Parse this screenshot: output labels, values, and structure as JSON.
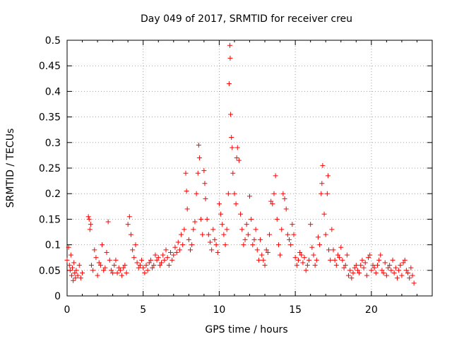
{
  "chart_data": {
    "type": "scatter",
    "title": "Day 049 of 2017, SRMTID for receiver creu",
    "xlabel": "GPS time / hours",
    "ylabel": "SRMTID / TECUs",
    "xlim": [
      0,
      24
    ],
    "ylim": [
      0,
      0.5
    ],
    "grid": true,
    "marker": "+",
    "xticks": [
      0,
      5,
      10,
      15,
      20
    ],
    "xtick_labels": [
      "0",
      "5",
      "10",
      "15",
      "20"
    ],
    "yticks": [
      0,
      0.05,
      0.1,
      0.15,
      0.2,
      0.25,
      0.3,
      0.35,
      0.4,
      0.45,
      0.5
    ],
    "ytick_labels": [
      "0",
      "0.05",
      "0.1",
      "0.15",
      "0.2",
      "0.25",
      "0.3",
      "0.35",
      "0.4",
      "0.45",
      "0.5"
    ],
    "series": [
      {
        "name": "SRMTID",
        "color": "#ff0000",
        "points": [
          [
            0.0,
            0.07
          ],
          [
            0.1,
            0.095
          ],
          [
            0.15,
            0.06
          ],
          [
            0.2,
            0.05
          ],
          [
            0.25,
            0.08
          ],
          [
            0.3,
            0.04
          ],
          [
            0.35,
            0.055
          ],
          [
            0.4,
            0.03
          ],
          [
            0.45,
            0.065
          ],
          [
            0.5,
            0.045
          ],
          [
            0.55,
            0.035
          ],
          [
            0.6,
            0.05
          ],
          [
            0.7,
            0.04
          ],
          [
            0.8,
            0.06
          ],
          [
            0.9,
            0.035
          ],
          [
            1.0,
            0.045
          ],
          [
            1.4,
            0.155
          ],
          [
            1.45,
            0.15
          ],
          [
            1.5,
            0.13
          ],
          [
            1.55,
            0.14
          ],
          [
            1.6,
            0.06
          ],
          [
            1.7,
            0.05
          ],
          [
            1.8,
            0.09
          ],
          [
            1.9,
            0.075
          ],
          [
            2.0,
            0.04
          ],
          [
            2.1,
            0.065
          ],
          [
            2.2,
            0.06
          ],
          [
            2.3,
            0.1
          ],
          [
            2.4,
            0.05
          ],
          [
            2.5,
            0.055
          ],
          [
            2.6,
            0.085
          ],
          [
            2.7,
            0.145
          ],
          [
            2.8,
            0.07
          ],
          [
            2.9,
            0.05
          ],
          [
            3.0,
            0.045
          ],
          [
            3.1,
            0.06
          ],
          [
            3.2,
            0.07
          ],
          [
            3.3,
            0.045
          ],
          [
            3.4,
            0.055
          ],
          [
            3.5,
            0.05
          ],
          [
            3.6,
            0.04
          ],
          [
            3.7,
            0.055
          ],
          [
            3.8,
            0.06
          ],
          [
            3.9,
            0.045
          ],
          [
            4.0,
            0.14
          ],
          [
            4.1,
            0.155
          ],
          [
            4.2,
            0.12
          ],
          [
            4.3,
            0.09
          ],
          [
            4.4,
            0.075
          ],
          [
            4.5,
            0.1
          ],
          [
            4.6,
            0.065
          ],
          [
            4.7,
            0.055
          ],
          [
            4.8,
            0.06
          ],
          [
            4.9,
            0.07
          ],
          [
            5.0,
            0.055
          ],
          [
            5.1,
            0.045
          ],
          [
            5.2,
            0.06
          ],
          [
            5.3,
            0.05
          ],
          [
            5.4,
            0.065
          ],
          [
            5.5,
            0.07
          ],
          [
            5.6,
            0.055
          ],
          [
            5.7,
            0.06
          ],
          [
            5.8,
            0.08
          ],
          [
            5.9,
            0.07
          ],
          [
            6.0,
            0.075
          ],
          [
            6.1,
            0.06
          ],
          [
            6.2,
            0.065
          ],
          [
            6.3,
            0.08
          ],
          [
            6.4,
            0.07
          ],
          [
            6.5,
            0.09
          ],
          [
            6.6,
            0.075
          ],
          [
            6.7,
            0.06
          ],
          [
            6.8,
            0.085
          ],
          [
            6.9,
            0.07
          ],
          [
            7.0,
            0.08
          ],
          [
            7.1,
            0.095
          ],
          [
            7.2,
            0.085
          ],
          [
            7.3,
            0.105
          ],
          [
            7.4,
            0.09
          ],
          [
            7.5,
            0.12
          ],
          [
            7.6,
            0.1
          ],
          [
            7.7,
            0.13
          ],
          [
            7.8,
            0.24
          ],
          [
            7.85,
            0.205
          ],
          [
            7.9,
            0.17
          ],
          [
            8.0,
            0.11
          ],
          [
            8.1,
            0.09
          ],
          [
            8.2,
            0.1
          ],
          [
            8.3,
            0.13
          ],
          [
            8.4,
            0.145
          ],
          [
            8.5,
            0.2
          ],
          [
            8.6,
            0.24
          ],
          [
            8.65,
            0.295
          ],
          [
            8.7,
            0.27
          ],
          [
            8.8,
            0.15
          ],
          [
            8.9,
            0.12
          ],
          [
            9.0,
            0.245
          ],
          [
            9.05,
            0.22
          ],
          [
            9.1,
            0.19
          ],
          [
            9.2,
            0.15
          ],
          [
            9.3,
            0.12
          ],
          [
            9.4,
            0.105
          ],
          [
            9.5,
            0.09
          ],
          [
            9.6,
            0.13
          ],
          [
            9.7,
            0.11
          ],
          [
            9.8,
            0.1
          ],
          [
            9.9,
            0.085
          ],
          [
            10.0,
            0.18
          ],
          [
            10.1,
            0.16
          ],
          [
            10.2,
            0.14
          ],
          [
            10.3,
            0.12
          ],
          [
            10.4,
            0.1
          ],
          [
            10.5,
            0.13
          ],
          [
            10.6,
            0.2
          ],
          [
            10.65,
            0.415
          ],
          [
            10.7,
            0.49
          ],
          [
            10.72,
            0.465
          ],
          [
            10.75,
            0.355
          ],
          [
            10.8,
            0.31
          ],
          [
            10.85,
            0.29
          ],
          [
            10.9,
            0.24
          ],
          [
            11.0,
            0.2
          ],
          [
            11.1,
            0.18
          ],
          [
            11.15,
            0.27
          ],
          [
            11.2,
            0.29
          ],
          [
            11.3,
            0.265
          ],
          [
            11.4,
            0.16
          ],
          [
            11.5,
            0.13
          ],
          [
            11.6,
            0.1
          ],
          [
            11.7,
            0.11
          ],
          [
            11.8,
            0.14
          ],
          [
            11.9,
            0.12
          ],
          [
            12.0,
            0.195
          ],
          [
            12.1,
            0.15
          ],
          [
            12.2,
            0.1
          ],
          [
            12.3,
            0.11
          ],
          [
            12.4,
            0.13
          ],
          [
            12.5,
            0.09
          ],
          [
            12.6,
            0.07
          ],
          [
            12.7,
            0.11
          ],
          [
            12.8,
            0.08
          ],
          [
            12.9,
            0.07
          ],
          [
            13.0,
            0.06
          ],
          [
            13.1,
            0.09
          ],
          [
            13.2,
            0.085
          ],
          [
            13.3,
            0.12
          ],
          [
            13.4,
            0.185
          ],
          [
            13.5,
            0.18
          ],
          [
            13.6,
            0.2
          ],
          [
            13.7,
            0.235
          ],
          [
            13.8,
            0.15
          ],
          [
            13.9,
            0.1
          ],
          [
            14.0,
            0.08
          ],
          [
            14.1,
            0.13
          ],
          [
            14.2,
            0.2
          ],
          [
            14.3,
            0.19
          ],
          [
            14.4,
            0.17
          ],
          [
            14.5,
            0.12
          ],
          [
            14.6,
            0.11
          ],
          [
            14.7,
            0.1
          ],
          [
            14.8,
            0.14
          ],
          [
            14.9,
            0.12
          ],
          [
            15.0,
            0.075
          ],
          [
            15.1,
            0.06
          ],
          [
            15.2,
            0.07
          ],
          [
            15.3,
            0.085
          ],
          [
            15.4,
            0.08
          ],
          [
            15.5,
            0.065
          ],
          [
            15.6,
            0.075
          ],
          [
            15.7,
            0.05
          ],
          [
            15.8,
            0.06
          ],
          [
            15.9,
            0.07
          ],
          [
            16.0,
            0.14
          ],
          [
            16.1,
            0.095
          ],
          [
            16.2,
            0.08
          ],
          [
            16.3,
            0.06
          ],
          [
            16.4,
            0.07
          ],
          [
            16.5,
            0.115
          ],
          [
            16.6,
            0.1
          ],
          [
            16.7,
            0.2
          ],
          [
            16.75,
            0.22
          ],
          [
            16.8,
            0.255
          ],
          [
            16.9,
            0.16
          ],
          [
            17.0,
            0.12
          ],
          [
            17.1,
            0.2
          ],
          [
            17.15,
            0.235
          ],
          [
            17.2,
            0.09
          ],
          [
            17.3,
            0.07
          ],
          [
            17.4,
            0.13
          ],
          [
            17.5,
            0.09
          ],
          [
            17.6,
            0.07
          ],
          [
            17.7,
            0.06
          ],
          [
            17.8,
            0.08
          ],
          [
            17.9,
            0.075
          ],
          [
            18.0,
            0.095
          ],
          [
            18.1,
            0.07
          ],
          [
            18.2,
            0.055
          ],
          [
            18.3,
            0.06
          ],
          [
            18.4,
            0.08
          ],
          [
            18.5,
            0.04
          ],
          [
            18.6,
            0.05
          ],
          [
            18.7,
            0.035
          ],
          [
            18.8,
            0.045
          ],
          [
            18.9,
            0.055
          ],
          [
            19.0,
            0.06
          ],
          [
            19.1,
            0.05
          ],
          [
            19.2,
            0.045
          ],
          [
            19.3,
            0.06
          ],
          [
            19.4,
            0.07
          ],
          [
            19.5,
            0.055
          ],
          [
            19.6,
            0.065
          ],
          [
            19.7,
            0.04
          ],
          [
            19.8,
            0.075
          ],
          [
            19.9,
            0.08
          ],
          [
            20.0,
            0.05
          ],
          [
            20.1,
            0.06
          ],
          [
            20.2,
            0.055
          ],
          [
            20.3,
            0.045
          ],
          [
            20.4,
            0.06
          ],
          [
            20.5,
            0.07
          ],
          [
            20.6,
            0.08
          ],
          [
            20.7,
            0.05
          ],
          [
            20.8,
            0.045
          ],
          [
            20.9,
            0.065
          ],
          [
            21.0,
            0.04
          ],
          [
            21.1,
            0.055
          ],
          [
            21.2,
            0.06
          ],
          [
            21.3,
            0.05
          ],
          [
            21.4,
            0.07
          ],
          [
            21.5,
            0.045
          ],
          [
            21.6,
            0.055
          ],
          [
            21.7,
            0.035
          ],
          [
            21.8,
            0.05
          ],
          [
            21.9,
            0.06
          ],
          [
            22.0,
            0.04
          ],
          [
            22.1,
            0.065
          ],
          [
            22.2,
            0.07
          ],
          [
            22.3,
            0.05
          ],
          [
            22.4,
            0.045
          ],
          [
            22.5,
            0.035
          ],
          [
            22.6,
            0.055
          ],
          [
            22.7,
            0.04
          ],
          [
            22.8,
            0.025
          ]
        ]
      }
    ]
  }
}
